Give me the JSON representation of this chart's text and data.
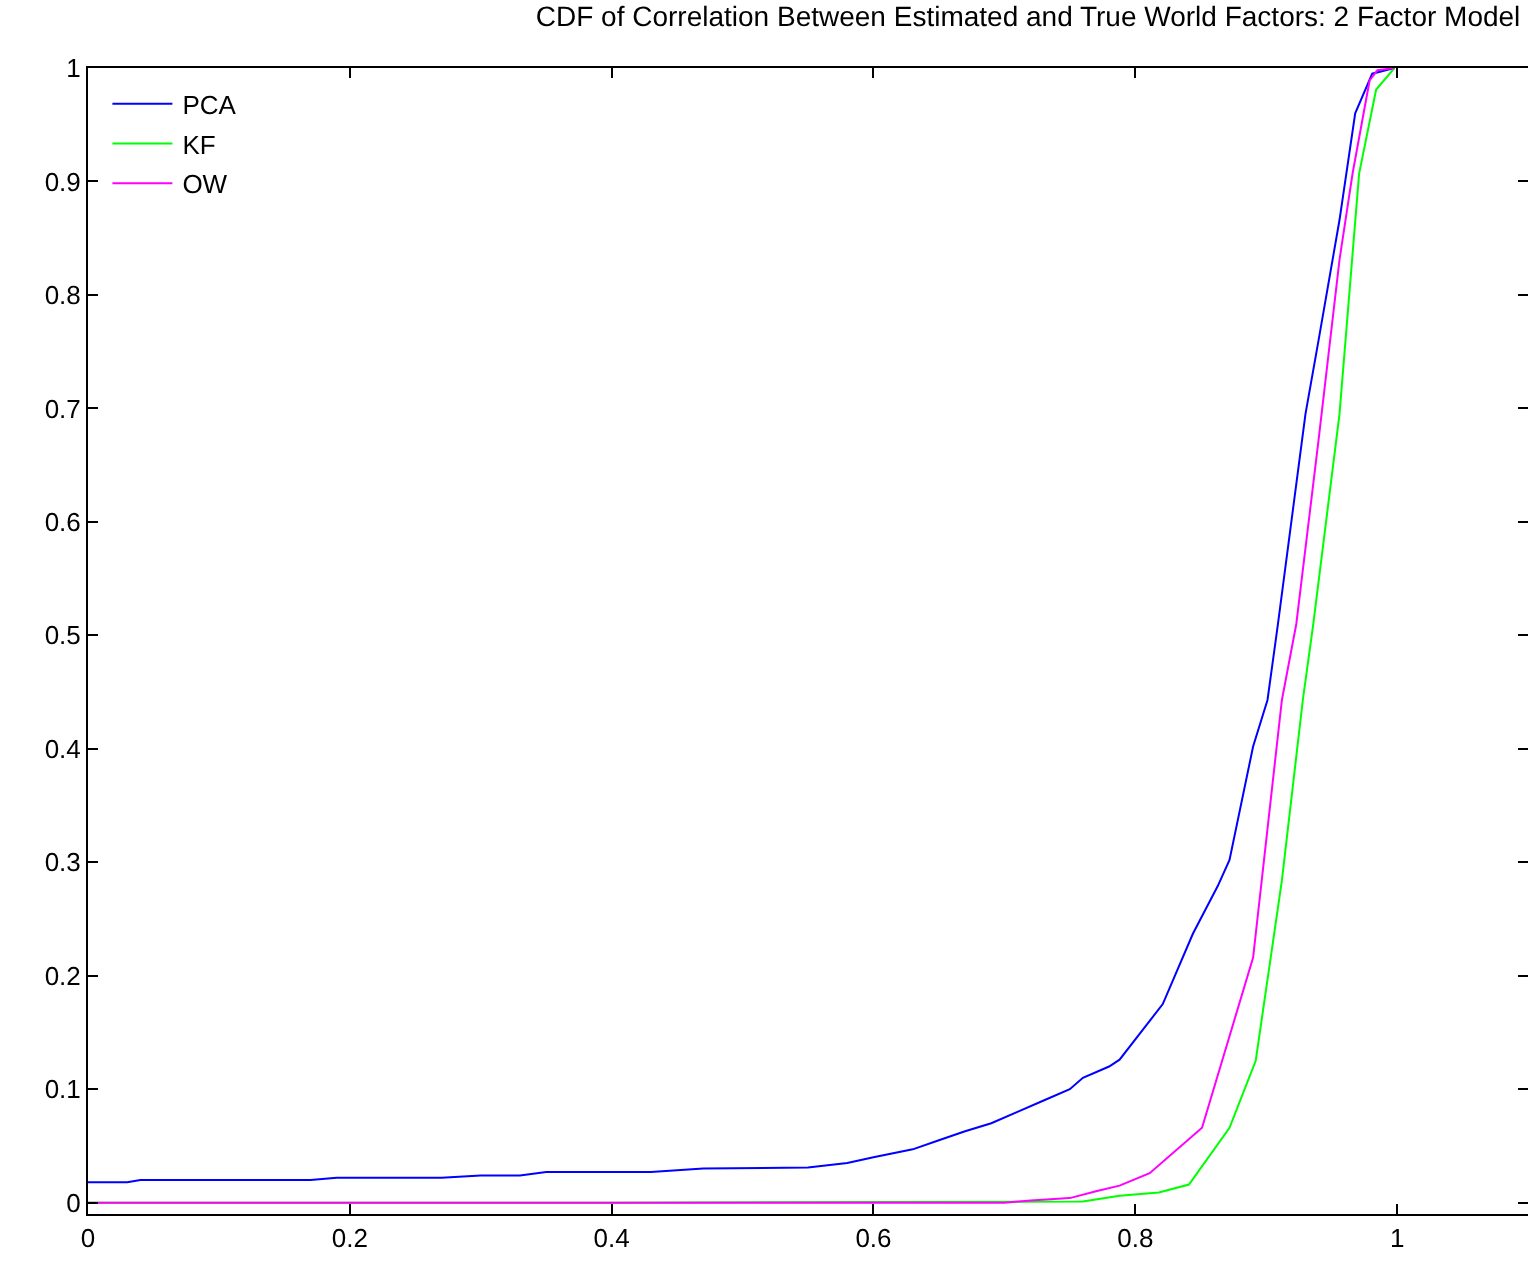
{
  "chart_data": {
    "type": "line",
    "title": "CDF of Correlation Between Estimated and True World Factors: 2 Factor Model",
    "xlim": [
      0,
      1.1
    ],
    "xticks": [
      0,
      0.2,
      0.4,
      0.6,
      0.8,
      1
    ],
    "ylim": [
      -0.01,
      1
    ],
    "yticks": [
      0,
      0.1,
      0.2,
      0.3,
      0.4,
      0.5,
      0.6,
      0.7,
      0.8,
      0.9,
      1
    ],
    "grid": false,
    "legend": "top left",
    "line_style": "solid",
    "marker": "none",
    "series": [
      {
        "name": "PCA",
        "color": "#0000ff",
        "x": [
          0,
          0.03,
          0.04,
          0.1,
          0.17,
          0.19,
          0.27,
          0.3,
          0.33,
          0.35,
          0.43,
          0.47,
          0.55,
          0.58,
          0.6,
          0.63,
          0.65,
          0.67,
          0.69,
          0.71,
          0.73,
          0.75,
          0.76,
          0.78,
          0.788,
          0.821,
          0.844,
          0.863,
          0.872,
          0.89,
          0.901,
          0.909,
          0.93,
          0.94,
          0.956,
          0.968,
          0.981,
          0.998
        ],
        "values": [
          0.018,
          0.018,
          0.02,
          0.02,
          0.02,
          0.022,
          0.022,
          0.024,
          0.024,
          0.027,
          0.027,
          0.03,
          0.031,
          0.035,
          0.04,
          0.047,
          0.055,
          0.063,
          0.07,
          0.08,
          0.09,
          0.1,
          0.11,
          0.12,
          0.126,
          0.175,
          0.237,
          0.279,
          0.302,
          0.402,
          0.443,
          0.51,
          0.695,
          0.76,
          0.866,
          0.96,
          0.995,
          1
        ]
      },
      {
        "name": "KF",
        "color": "#00ff00",
        "x": [
          0,
          0.4,
          0.76,
          0.788,
          0.818,
          0.841,
          0.872,
          0.892,
          0.912,
          0.928,
          0.936,
          0.956,
          0.971,
          0.984,
          0.998
        ],
        "values": [
          0,
          0,
          0.001,
          0.006,
          0.009,
          0.016,
          0.066,
          0.125,
          0.284,
          0.443,
          0.51,
          0.695,
          0.907,
          0.981,
          1
        ]
      },
      {
        "name": "OW",
        "color": "#ff00ff",
        "x": [
          0,
          0.4,
          0.7,
          0.72,
          0.75,
          0.77,
          0.788,
          0.811,
          0.851,
          0.89,
          0.912,
          0.923,
          0.94,
          0.956,
          0.966,
          0.979,
          0.985,
          0.998
        ],
        "values": [
          0,
          0,
          0,
          0.002,
          0.004,
          0.01,
          0.015,
          0.026,
          0.066,
          0.216,
          0.443,
          0.51,
          0.672,
          0.831,
          0.907,
          0.989,
          0.998,
          1
        ]
      }
    ]
  }
}
